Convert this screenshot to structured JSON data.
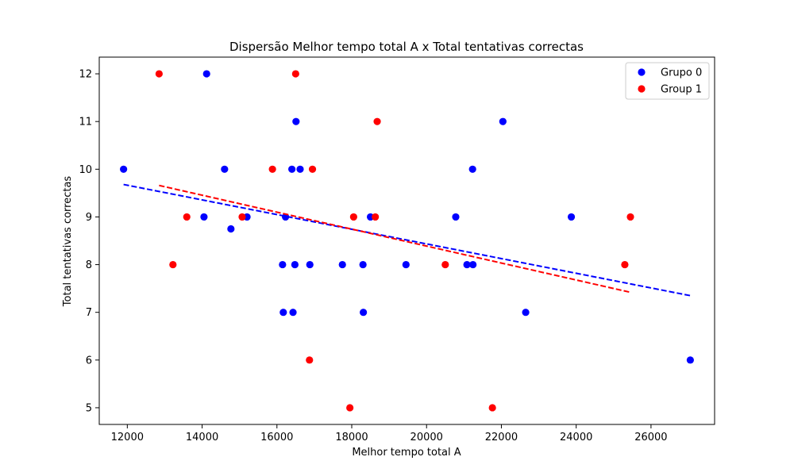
{
  "chart_data": {
    "type": "scatter",
    "title": "Dispersão Melhor tempo total A x Total tentativas correctas",
    "xlabel": "Melhor tempo total A",
    "ylabel": "Total tentativas correctas",
    "xlim": [
      11250,
      27700
    ],
    "ylim": [
      4.65,
      12.35
    ],
    "xticks": [
      12000,
      14000,
      16000,
      18000,
      20000,
      22000,
      24000,
      26000
    ],
    "yticks": [
      5,
      6,
      7,
      8,
      9,
      10,
      11,
      12
    ],
    "grid": false,
    "legend_position": "top-right",
    "series": [
      {
        "name": "Grupo 0",
        "color": "#0000ff",
        "points": [
          [
            11900,
            10
          ],
          [
            14050,
            9
          ],
          [
            14120,
            12
          ],
          [
            14600,
            10
          ],
          [
            14770,
            8.75
          ],
          [
            15200,
            9
          ],
          [
            16150,
            8
          ],
          [
            16170,
            7
          ],
          [
            16230,
            9
          ],
          [
            16400,
            10
          ],
          [
            16430,
            7
          ],
          [
            16480,
            8
          ],
          [
            16510,
            11
          ],
          [
            16620,
            10
          ],
          [
            16880,
            8
          ],
          [
            17750,
            8
          ],
          [
            18300,
            8
          ],
          [
            18310,
            7
          ],
          [
            18500,
            9
          ],
          [
            19450,
            8
          ],
          [
            20780,
            9
          ],
          [
            21080,
            8
          ],
          [
            21230,
            10
          ],
          [
            21240,
            8
          ],
          [
            22040,
            11
          ],
          [
            22650,
            7
          ],
          [
            23870,
            9
          ],
          [
            27050,
            6
          ]
        ],
        "trend": {
          "x": [
            11900,
            27050
          ],
          "y": [
            9.68,
            7.35
          ]
        }
      },
      {
        "name": "Group 1",
        "color": "#ff0000",
        "points": [
          [
            12850,
            12
          ],
          [
            13220,
            8
          ],
          [
            13590,
            9
          ],
          [
            15070,
            9
          ],
          [
            15880,
            10
          ],
          [
            16500,
            12
          ],
          [
            16870,
            6
          ],
          [
            16950,
            10
          ],
          [
            17950,
            5
          ],
          [
            18050,
            9
          ],
          [
            18630,
            9
          ],
          [
            18680,
            11
          ],
          [
            20500,
            8
          ],
          [
            21760,
            5
          ],
          [
            25300,
            8
          ],
          [
            25450,
            9
          ]
        ],
        "trend": {
          "x": [
            12850,
            25450
          ],
          "y": [
            9.66,
            7.42
          ]
        }
      }
    ]
  }
}
